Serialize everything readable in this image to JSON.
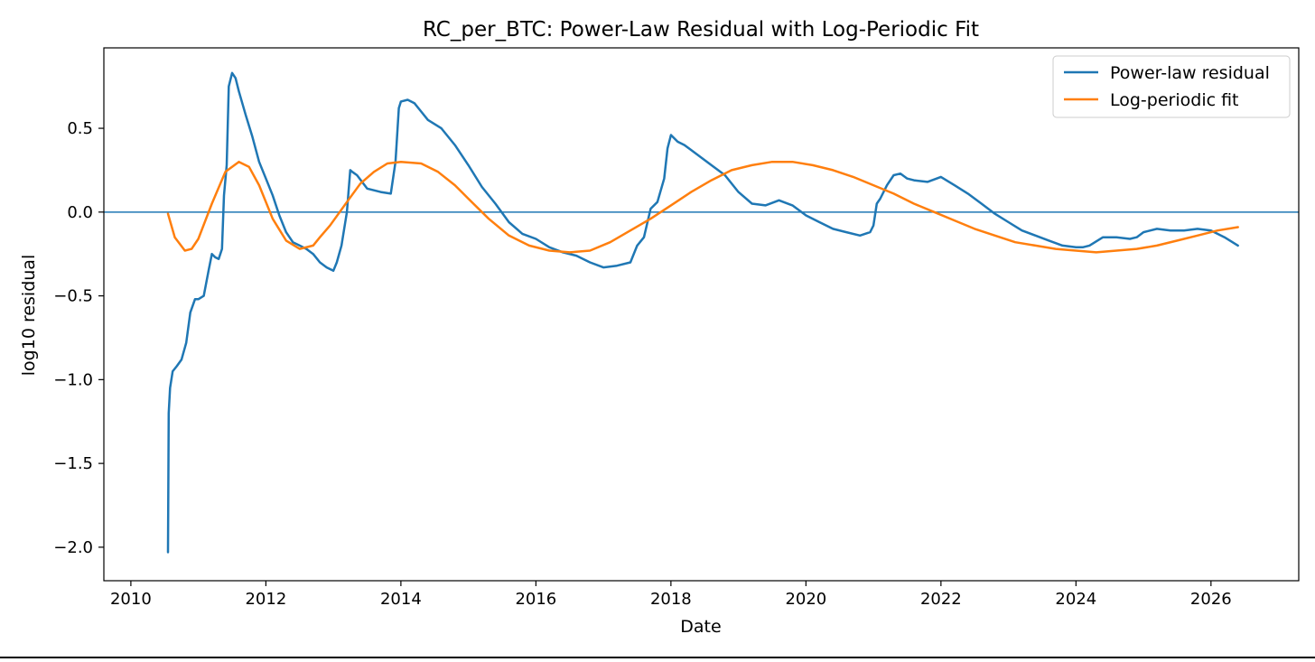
{
  "chart_data": {
    "type": "line",
    "title": "RC_per_BTC: Power-Law Residual with Log-Periodic Fit",
    "xlabel": "Date",
    "ylabel": "log10 residual",
    "xlim": [
      2009.6,
      2027.3
    ],
    "ylim": [
      -2.2,
      0.98
    ],
    "x_ticks": [
      2010,
      2012,
      2014,
      2016,
      2018,
      2020,
      2022,
      2024,
      2026
    ],
    "x_tick_labels": [
      "2010",
      "2012",
      "2014",
      "2016",
      "2018",
      "2020",
      "2022",
      "2024",
      "2026"
    ],
    "y_ticks": [
      -2.0,
      -1.5,
      -1.0,
      -0.5,
      0.0,
      0.5
    ],
    "y_tick_labels": [
      "−2.0",
      "−1.5",
      "−1.0",
      "−0.5",
      "0.0",
      "0.5"
    ],
    "grid": false,
    "legend": {
      "position": "top-right"
    },
    "reference_line": {
      "y": 0.0,
      "color": "#1f77b4"
    },
    "colors": {
      "residual": "#1f77b4",
      "fit": "#ff7f0e"
    },
    "series": [
      {
        "name": "Power-law residual",
        "x": [
          2010.55,
          2010.56,
          2010.58,
          2010.62,
          2010.68,
          2010.75,
          2010.82,
          2010.88,
          2010.95,
          2011.0,
          2011.08,
          2011.15,
          2011.2,
          2011.25,
          2011.3,
          2011.35,
          2011.38,
          2011.42,
          2011.45,
          2011.5,
          2011.55,
          2011.6,
          2011.7,
          2011.8,
          2011.9,
          2012.0,
          2012.1,
          2012.2,
          2012.3,
          2012.4,
          2012.5,
          2012.6,
          2012.7,
          2012.8,
          2012.9,
          2013.0,
          2013.05,
          2013.12,
          2013.2,
          2013.25,
          2013.28,
          2013.35,
          2013.5,
          2013.7,
          2013.85,
          2013.92,
          2013.97,
          2014.0,
          2014.1,
          2014.2,
          2014.3,
          2014.4,
          2014.6,
          2014.8,
          2015.0,
          2015.2,
          2015.4,
          2015.6,
          2015.8,
          2016.0,
          2016.2,
          2016.4,
          2016.6,
          2016.8,
          2017.0,
          2017.2,
          2017.4,
          2017.5,
          2017.6,
          2017.7,
          2017.8,
          2017.9,
          2017.95,
          2018.0,
          2018.1,
          2018.2,
          2018.4,
          2018.6,
          2018.8,
          2019.0,
          2019.2,
          2019.4,
          2019.6,
          2019.8,
          2020.0,
          2020.2,
          2020.4,
          2020.6,
          2020.8,
          2020.95,
          2021.0,
          2021.05,
          2021.1,
          2021.2,
          2021.3,
          2021.4,
          2021.5,
          2021.6,
          2021.8,
          2022.0,
          2022.2,
          2022.4,
          2022.6,
          2022.8,
          2023.0,
          2023.2,
          2023.4,
          2023.6,
          2023.8,
          2024.0,
          2024.05,
          2024.1,
          2024.2,
          2024.4,
          2024.6,
          2024.8,
          2024.9,
          2025.0,
          2025.2,
          2025.4,
          2025.6,
          2025.8,
          2026.0,
          2026.2,
          2026.4
        ],
        "y": [
          -2.03,
          -1.2,
          -1.05,
          -0.95,
          -0.92,
          -0.88,
          -0.78,
          -0.6,
          -0.52,
          -0.52,
          -0.5,
          -0.35,
          -0.25,
          -0.27,
          -0.28,
          -0.22,
          0.1,
          0.28,
          0.75,
          0.83,
          0.8,
          0.72,
          0.58,
          0.45,
          0.3,
          0.2,
          0.1,
          -0.02,
          -0.12,
          -0.18,
          -0.2,
          -0.22,
          -0.25,
          -0.3,
          -0.33,
          -0.35,
          -0.3,
          -0.2,
          0.0,
          0.25,
          0.24,
          0.22,
          0.14,
          0.12,
          0.11,
          0.3,
          0.62,
          0.66,
          0.67,
          0.65,
          0.6,
          0.55,
          0.5,
          0.4,
          0.28,
          0.15,
          0.05,
          -0.06,
          -0.13,
          -0.16,
          -0.21,
          -0.24,
          -0.26,
          -0.3,
          -0.33,
          -0.32,
          -0.3,
          -0.2,
          -0.15,
          0.02,
          0.06,
          0.2,
          0.38,
          0.46,
          0.42,
          0.4,
          0.34,
          0.28,
          0.22,
          0.12,
          0.05,
          0.04,
          0.07,
          0.04,
          -0.02,
          -0.06,
          -0.1,
          -0.12,
          -0.14,
          -0.12,
          -0.08,
          0.05,
          0.08,
          0.16,
          0.22,
          0.23,
          0.2,
          0.19,
          0.18,
          0.21,
          0.16,
          0.11,
          0.05,
          -0.01,
          -0.06,
          -0.11,
          -0.14,
          -0.17,
          -0.2,
          -0.21,
          -0.21,
          -0.21,
          -0.2,
          -0.15,
          -0.15,
          -0.16,
          -0.15,
          -0.12,
          -0.1,
          -0.11,
          -0.11,
          -0.1,
          -0.11,
          -0.15,
          -0.2
        ]
      },
      {
        "name": "Log-periodic fit",
        "x": [
          2010.55,
          2010.65,
          2010.8,
          2010.9,
          2011.0,
          2011.2,
          2011.4,
          2011.6,
          2011.75,
          2011.9,
          2012.1,
          2012.3,
          2012.5,
          2012.7,
          2012.8,
          2012.95,
          2013.2,
          2013.4,
          2013.6,
          2013.8,
          2014.0,
          2014.3,
          2014.55,
          2014.8,
          2015.0,
          2015.3,
          2015.6,
          2015.9,
          2016.2,
          2016.5,
          2016.8,
          2017.1,
          2017.4,
          2017.7,
          2018.0,
          2018.3,
          2018.6,
          2018.9,
          2019.2,
          2019.5,
          2019.8,
          2020.1,
          2020.4,
          2020.7,
          2021.0,
          2021.3,
          2021.6,
          2021.9,
          2022.2,
          2022.5,
          2022.8,
          2023.1,
          2023.4,
          2023.7,
          2024.0,
          2024.3,
          2024.6,
          2024.9,
          2025.2,
          2025.5,
          2025.8,
          2026.1,
          2026.4
        ],
        "y": [
          -0.01,
          -0.15,
          -0.23,
          -0.22,
          -0.16,
          0.05,
          0.24,
          0.3,
          0.27,
          0.16,
          -0.04,
          -0.17,
          -0.22,
          -0.2,
          -0.15,
          -0.08,
          0.06,
          0.17,
          0.24,
          0.29,
          0.3,
          0.29,
          0.24,
          0.16,
          0.08,
          -0.04,
          -0.14,
          -0.2,
          -0.23,
          -0.24,
          -0.23,
          -0.18,
          -0.11,
          -0.04,
          0.04,
          0.12,
          0.19,
          0.25,
          0.28,
          0.3,
          0.3,
          0.28,
          0.25,
          0.21,
          0.16,
          0.11,
          0.05,
          0.0,
          -0.05,
          -0.1,
          -0.14,
          -0.18,
          -0.2,
          -0.22,
          -0.23,
          -0.24,
          -0.23,
          -0.22,
          -0.2,
          -0.17,
          -0.14,
          -0.11,
          -0.09
        ]
      }
    ]
  }
}
